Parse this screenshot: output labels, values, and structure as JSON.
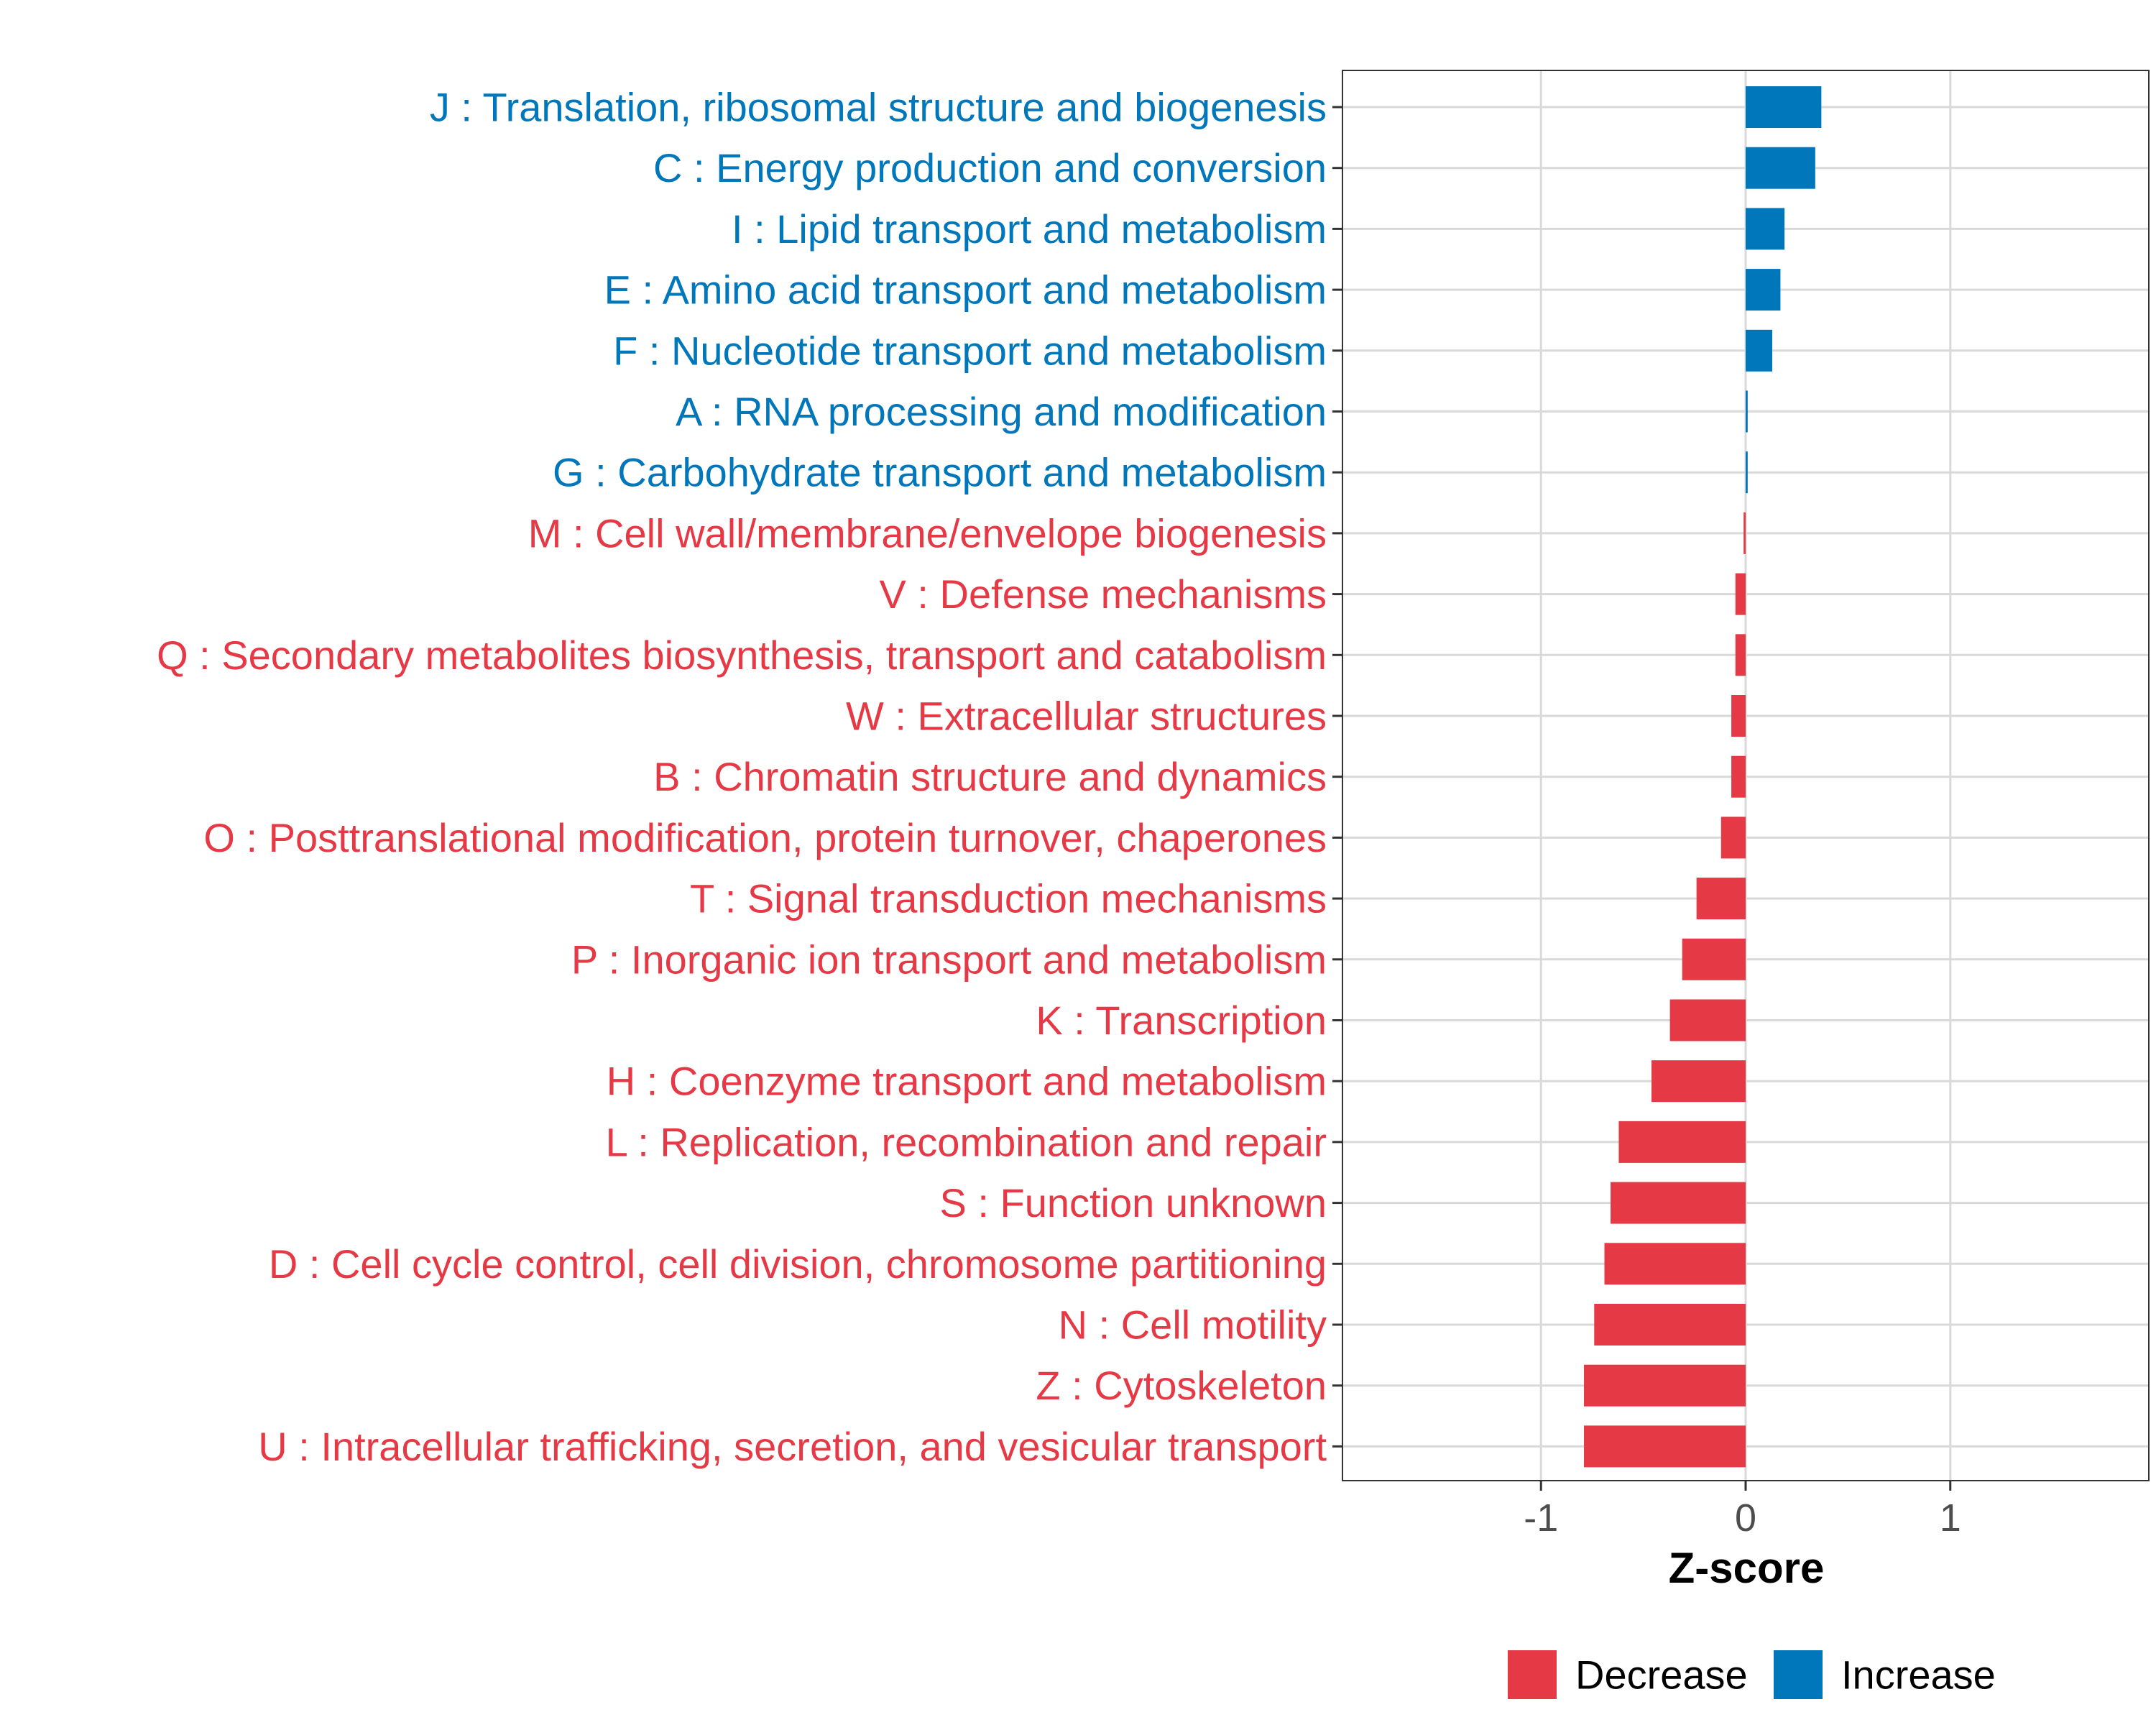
{
  "chart_data": {
    "type": "bar",
    "orientation": "horizontal",
    "title": "",
    "xlabel": "Z-score",
    "ylabel": "",
    "xlim": [
      -1.97,
      1.97
    ],
    "xticks": [
      -1,
      0,
      1
    ],
    "xtick_labels": [
      "-1",
      "0",
      "1"
    ],
    "grid": true,
    "categories": [
      "J : Translation, ribosomal structure and biogenesis",
      "C : Energy production and conversion",
      "I : Lipid transport and metabolism",
      "E : Amino acid transport and metabolism",
      "F : Nucleotide transport and metabolism",
      "A : RNA processing and modification",
      "G : Carbohydrate transport and metabolism",
      "M : Cell wall/membrane/envelope biogenesis",
      "V : Defense mechanisms",
      "Q : Secondary metabolites biosynthesis, transport and catabolism",
      "W : Extracellular structures",
      "B : Chromatin structure and dynamics",
      "O : Posttranslational modification, protein turnover, chaperones",
      "T : Signal transduction mechanisms",
      "P : Inorganic ion transport and metabolism",
      "K : Transcription",
      "H : Coenzyme transport and metabolism",
      "L : Replication, recombination and repair",
      "S : Function unknown",
      "D : Cell cycle control, cell division, chromosome partitioning",
      "N : Cell motility",
      "Z : Cytoskeleton",
      "U : Intracellular trafficking, secretion, and vesicular transport"
    ],
    "values": [
      0.37,
      0.34,
      0.19,
      0.17,
      0.13,
      0.01,
      0.01,
      -0.01,
      -0.05,
      -0.05,
      -0.07,
      -0.07,
      -0.12,
      -0.24,
      -0.31,
      -0.37,
      -0.46,
      -0.62,
      -0.66,
      -0.69,
      -0.74,
      -0.79,
      -0.79
    ],
    "groups": [
      "Increase",
      "Increase",
      "Increase",
      "Increase",
      "Increase",
      "Increase",
      "Increase",
      "Decrease",
      "Decrease",
      "Decrease",
      "Decrease",
      "Decrease",
      "Decrease",
      "Decrease",
      "Decrease",
      "Decrease",
      "Decrease",
      "Decrease",
      "Decrease",
      "Decrease",
      "Decrease",
      "Decrease",
      "Decrease"
    ],
    "legend": {
      "position": "bottom",
      "entries": [
        {
          "label": "Decrease",
          "color": "#E63946"
        },
        {
          "label": "Increase",
          "color": "#0077BB"
        }
      ]
    }
  },
  "colors": {
    "decrease": "#E63946",
    "increase": "#0077BB",
    "grid": "#D9D9D9",
    "axis_text": "#4D4D4D"
  }
}
